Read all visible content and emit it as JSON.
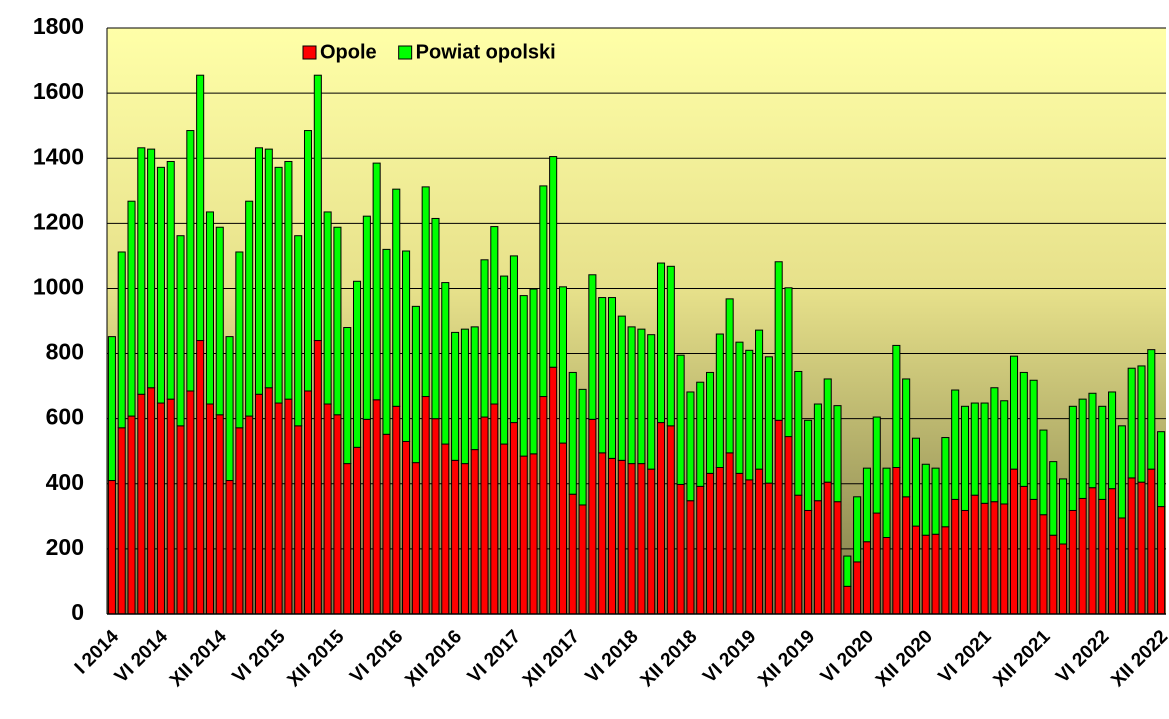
{
  "chart_data": {
    "type": "stacked_bar",
    "categories": [
      "I 2014",
      null,
      null,
      null,
      null,
      "VI 2014",
      null,
      null,
      null,
      null,
      null,
      "XII 2014",
      null,
      null,
      null,
      null,
      null,
      "VI 2015",
      null,
      null,
      null,
      null,
      null,
      "XII 2015",
      null,
      null,
      null,
      null,
      null,
      "VI 2016",
      null,
      null,
      null,
      null,
      null,
      "XII 2016",
      null,
      null,
      null,
      null,
      null,
      "VI 2017",
      null,
      null,
      null,
      null,
      null,
      "XII 2017",
      null,
      null,
      null,
      null,
      null,
      "VI 2018",
      null,
      null,
      null,
      null,
      null,
      "XII 2018",
      null,
      null,
      null,
      null,
      null,
      "VI 2019",
      null,
      null,
      null,
      null,
      null,
      "XII 2019",
      null,
      null,
      null,
      null,
      null,
      "VI 2020",
      null,
      null,
      null,
      null,
      null,
      "XII 2020",
      null,
      null,
      null,
      null,
      null,
      "VI 2021",
      null,
      null,
      null,
      null,
      null,
      "XII 2021",
      null,
      null,
      null,
      null,
      null,
      "VI 2022",
      null,
      null,
      null,
      null,
      null,
      "XII 2022"
    ],
    "series": [
      {
        "name": "Opole",
        "color": "#ff0000",
        "values": [
          410,
          572,
          608,
          675,
          695,
          648,
          660,
          578,
          685,
          840,
          645,
          612,
          410,
          572,
          608,
          675,
          695,
          648,
          660,
          578,
          685,
          840,
          645,
          612,
          462,
          512,
          598,
          658,
          552,
          638,
          530,
          465,
          668,
          600,
          522,
          472,
          462,
          505,
          605,
          645,
          522,
          588,
          485,
          492,
          668,
          758,
          525,
          368,
          335,
          598,
          495,
          478,
          472,
          462,
          462,
          445,
          588,
          578,
          398,
          348,
          392,
          432,
          450,
          495,
          432,
          412,
          445,
          402,
          595,
          545,
          365,
          318,
          348,
          405,
          345,
          85,
          160,
          222,
          310,
          235,
          450,
          360,
          270,
          242,
          245,
          268,
          352,
          318,
          365,
          340,
          345,
          338,
          445,
          392,
          352,
          305,
          242,
          215,
          318,
          355,
          388,
          352,
          385,
          295,
          418,
          405,
          445,
          330
        ]
      },
      {
        "name": "Powiat opolski",
        "color": "#00ff00",
        "values": [
          442,
          540,
          660,
          757,
          733,
          724,
          730,
          584,
          800,
          815,
          590,
          576,
          442,
          540,
          660,
          757,
          733,
          724,
          730,
          584,
          800,
          815,
          590,
          576,
          418,
          510,
          624,
          727,
          568,
          667,
          585,
          480,
          644,
          615,
          496,
          393,
          413,
          377,
          483,
          545,
          516,
          512,
          493,
          506,
          647,
          647,
          480,
          374,
          355,
          444,
          477,
          494,
          443,
          420,
          413,
          413,
          490,
          490,
          397,
          334,
          320,
          310,
          410,
          473,
          403,
          398,
          427,
          388,
          487,
          457,
          380,
          277,
          297,
          317,
          295,
          93,
          200,
          226,
          295,
          213,
          375,
          362,
          270,
          218,
          203,
          274,
          336,
          320,
          283,
          308,
          350,
          317,
          347,
          350,
          366,
          260,
          226,
          200,
          320,
          305,
          290,
          286,
          297,
          283,
          337,
          357,
          367,
          230
        ]
      }
    ],
    "ylim": [
      0,
      1800
    ],
    "yticks": [
      0,
      200,
      400,
      600,
      800,
      1000,
      1200,
      1400,
      1600,
      1800
    ],
    "grid": true,
    "legend": "top"
  }
}
